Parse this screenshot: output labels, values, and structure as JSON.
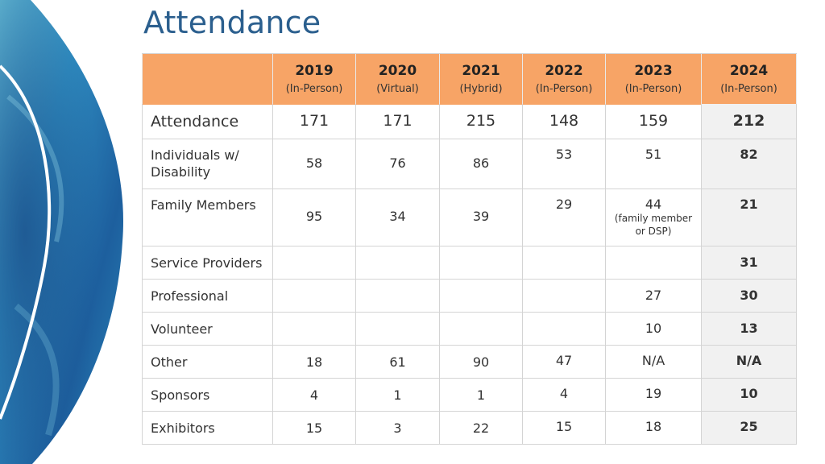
{
  "title": "Attendance",
  "columns": [
    {
      "year": "2019",
      "format": "(In-Person)"
    },
    {
      "year": "2020",
      "format": "(Virtual)"
    },
    {
      "year": "2021",
      "format": "(Hybrid)"
    },
    {
      "year": "2022",
      "format": "(In-Person)"
    },
    {
      "year": "2023",
      "format": "(In-Person)"
    },
    {
      "year": "2024",
      "format": "(In-Person)"
    }
  ],
  "rows": [
    {
      "label": "Attendance",
      "values": [
        "171",
        "171",
        "215",
        "148",
        "159",
        "212"
      ]
    },
    {
      "label": "Individuals w/ Disability",
      "values": [
        "58",
        "76",
        "86",
        "53",
        "51",
        "82"
      ]
    },
    {
      "label": "Family Members",
      "values": [
        "95",
        "34",
        "39",
        "29",
        "44",
        "21"
      ],
      "note_2023": "(family member or DSP)"
    },
    {
      "label": "Service Providers",
      "values": [
        "",
        "",
        "",
        "",
        "",
        "31"
      ]
    },
    {
      "label": "Professional",
      "values": [
        "",
        "",
        "",
        "",
        "27",
        "30"
      ]
    },
    {
      "label": "Volunteer",
      "values": [
        "",
        "",
        "",
        "",
        "10",
        "13"
      ]
    },
    {
      "label": "Other",
      "values": [
        "18",
        "61",
        "90",
        "47",
        "N/A",
        "N/A"
      ]
    },
    {
      "label": "Sponsors",
      "values": [
        "4",
        "1",
        "1",
        "4",
        "19",
        "10"
      ]
    },
    {
      "label": "Exhibitors",
      "values": [
        "15",
        "3",
        "22",
        "15",
        "18",
        "25"
      ]
    }
  ],
  "colors": {
    "header": "#f7a466",
    "title": "#2b5f8e",
    "highlight_column": "#f1f1f1"
  }
}
